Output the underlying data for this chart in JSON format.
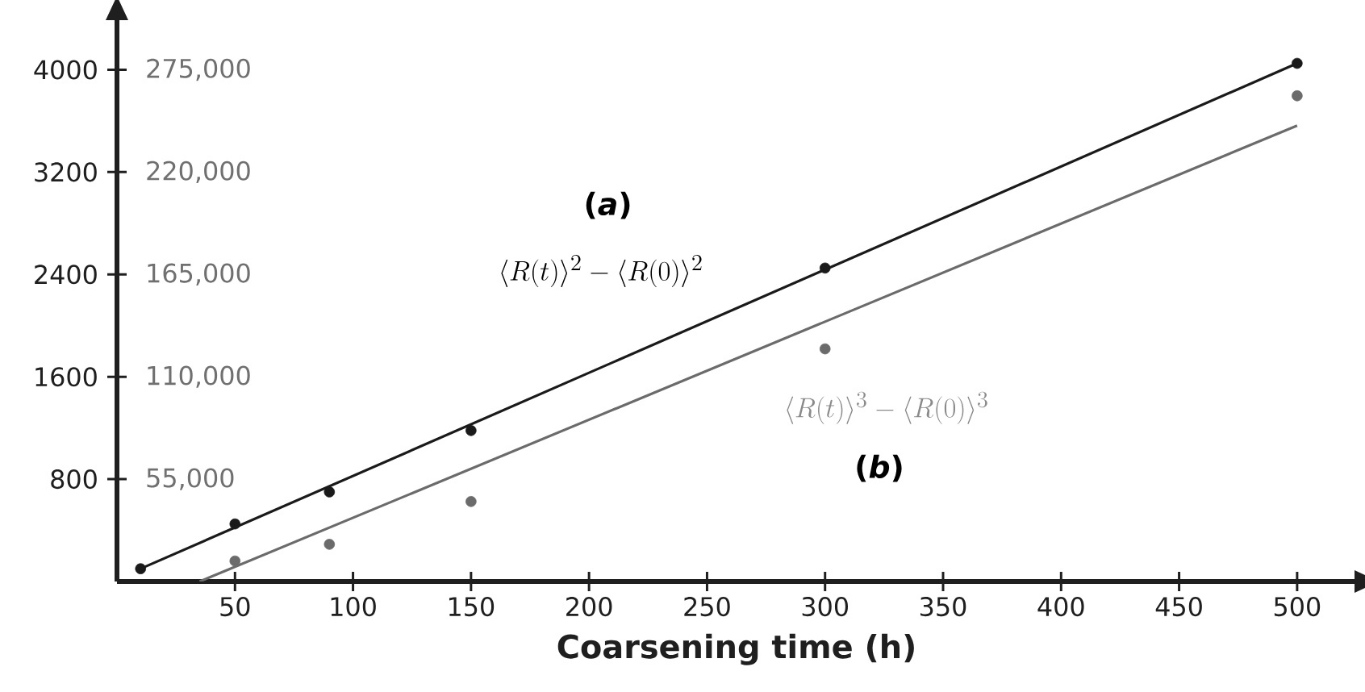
{
  "chart_data": {
    "type": "scatter",
    "xlabel": "Coarsening time (h)",
    "xlim": [
      0,
      525
    ],
    "xticks": [
      50,
      100,
      150,
      200,
      250,
      300,
      350,
      400,
      450,
      500
    ],
    "ylim": [
      0,
      4400
    ],
    "yticks": [
      800,
      1600,
      2400,
      3200,
      4000
    ],
    "y2lim": [
      0,
      302500
    ],
    "y2ticks": [
      {
        "value": 55000,
        "label": "55,000"
      },
      {
        "value": 110000,
        "label": "110,000"
      },
      {
        "value": 165000,
        "label": "165,000"
      },
      {
        "value": 220000,
        "label": "220,000"
      },
      {
        "value": 275000,
        "label": "275,000"
      }
    ],
    "marker": "circle",
    "line_style": "solid",
    "grid": false,
    "series": [
      {
        "color": "#1a1a1a",
        "x": [
          10,
          50,
          90,
          150,
          300,
          500
        ],
        "values": [
          100,
          450,
          700,
          1180,
          2450,
          4050
        ]
      },
      {
        "type": "line",
        "marker": "none",
        "color": "#1a1a1a",
        "x": [
          10,
          500
        ],
        "values": [
          100,
          4050
        ]
      },
      {
        "color": "#6b6b6b",
        "axis": "y2",
        "x": [
          50,
          90,
          150,
          300,
          500
        ],
        "values": [
          11000,
          20000,
          43000,
          125000,
          261000
        ]
      },
      {
        "type": "line",
        "marker": "none",
        "color": "#6b6b6b",
        "axis": "y2",
        "x": [
          35,
          500
        ],
        "values": [
          0,
          245000
        ]
      }
    ],
    "annotations": [
      "(*a*)",
      "\\langle R(t)\\rangle^{2}-\\langle R(0)\\rangle^{2}",
      "\\langle R(t)\\rangle^{3}-\\langle R(0)\\rangle^{3}",
      "(*b*)"
    ]
  }
}
